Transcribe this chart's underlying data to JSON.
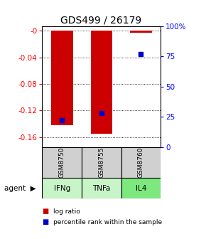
{
  "title": "GDS499 / 26179",
  "samples": [
    "GSM8750",
    "GSM8755",
    "GSM8760"
  ],
  "agents": [
    "IFNg",
    "TNFa",
    "IL4"
  ],
  "log_ratios": [
    -0.142,
    -0.155,
    -0.003
  ],
  "percentile_ranks": [
    22,
    28,
    77
  ],
  "ylim_left": [
    -0.175,
    0.007
  ],
  "ylim_right": [
    0,
    100
  ],
  "yticks_left": [
    -0.16,
    -0.12,
    -0.08,
    -0.04,
    0.0
  ],
  "yticks_right": [
    0,
    25,
    50,
    75,
    100
  ],
  "ytick_labels_left": [
    "-0.16",
    "-0.12",
    "-0.08",
    "-0.04",
    "-0"
  ],
  "ytick_labels_right": [
    "0",
    "25",
    "50",
    "75",
    "100%"
  ],
  "bar_color": "#cc0000",
  "square_color": "#0000cc",
  "agent_colors": [
    "#c8f5c8",
    "#c8f5c8",
    "#7de87d"
  ],
  "sample_bg_color": "#d0d0d0",
  "title_fontsize": 10,
  "tick_fontsize": 7.5,
  "bar_width": 0.55
}
